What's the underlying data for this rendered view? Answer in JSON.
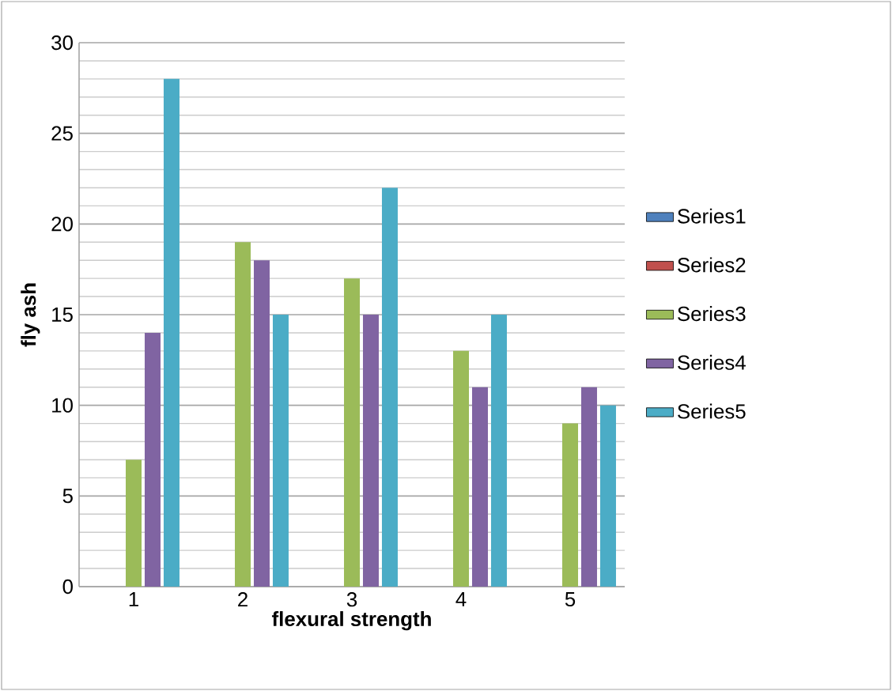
{
  "chart_data": {
    "type": "bar",
    "xlabel": "flexural strength",
    "ylabel": "fly ash",
    "categories": [
      "1",
      "2",
      "3",
      "4",
      "5"
    ],
    "series": [
      {
        "name": "Series1",
        "color": "#4f81bd",
        "values": [
          0,
          0,
          0,
          0,
          0
        ]
      },
      {
        "name": "Series2",
        "color": "#c0504d",
        "values": [
          0,
          0,
          0,
          0,
          0
        ]
      },
      {
        "name": "Series3",
        "color": "#9bbb59",
        "values": [
          7,
          19,
          17,
          13,
          9
        ]
      },
      {
        "name": "Series4",
        "color": "#8064a2",
        "values": [
          14,
          18,
          15,
          11,
          11
        ]
      },
      {
        "name": "Series5",
        "color": "#4bacc6",
        "values": [
          28,
          15,
          22,
          15,
          10
        ]
      }
    ],
    "ylim": [
      0,
      30
    ],
    "yticks": [
      0,
      5,
      10,
      15,
      20,
      25,
      30
    ],
    "grid": "y",
    "legend": "right"
  }
}
